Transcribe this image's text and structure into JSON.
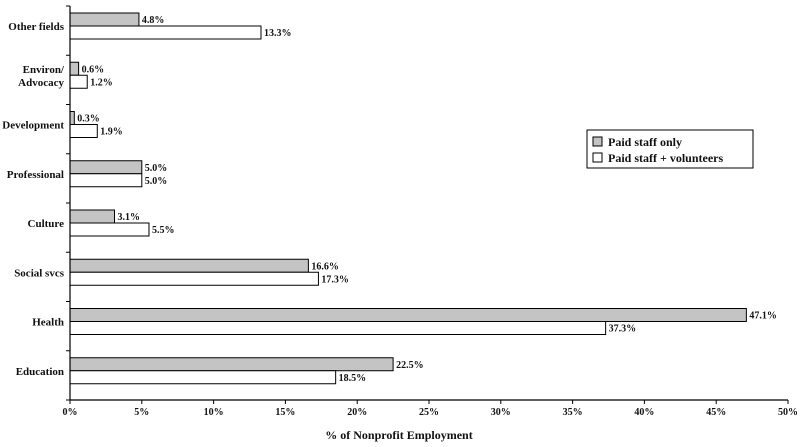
{
  "chart_data": {
    "type": "bar",
    "orientation": "horizontal",
    "categories": [
      "Other fields",
      "Environ/\nAdvocacy",
      "Development",
      "Professional",
      "Culture",
      "Social svcs",
      "Health",
      "Education"
    ],
    "series": [
      {
        "name": "Paid staff only",
        "values": [
          4.8,
          0.6,
          0.3,
          5.0,
          3.1,
          16.6,
          47.1,
          22.5
        ],
        "labels": [
          "4.8%",
          "0.6%",
          "0.3%",
          "5.0%",
          "3.1%",
          "16.6%",
          "47.1%",
          "22.5%"
        ],
        "color": "#c4c4c4"
      },
      {
        "name": "Paid staff + volunteers",
        "values": [
          13.3,
          1.2,
          1.9,
          5.0,
          5.5,
          17.3,
          37.3,
          18.5
        ],
        "labels": [
          "13.3%",
          "1.2%",
          "1.9%",
          "5.0%",
          "5.5%",
          "17.3%",
          "37.3%",
          "18.5%"
        ],
        "color": "#ffffff"
      }
    ],
    "xlabel": "% of Nonprofit Employment",
    "xlim": [
      0,
      50
    ],
    "xticks": [
      0,
      5,
      10,
      15,
      20,
      25,
      30,
      35,
      40,
      45,
      50
    ],
    "xtick_labels": [
      "0%",
      "5%",
      "10%",
      "15%",
      "20%",
      "25%",
      "30%",
      "35%",
      "40%",
      "45%",
      "50%"
    ],
    "legend": {
      "position": "right",
      "entries": [
        "Paid staff only",
        "Paid staff + volunteers"
      ]
    },
    "grid": false
  }
}
